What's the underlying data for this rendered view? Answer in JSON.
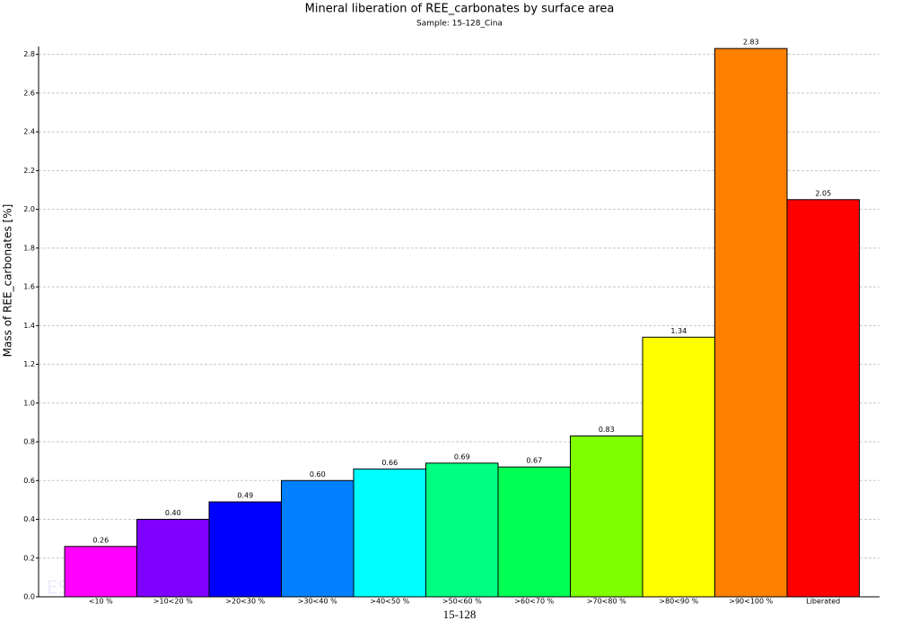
{
  "chart_data": {
    "type": "bar",
    "title": "Mineral liberation of REE_carbonates by surface area",
    "subtitle": "Sample: 15-128_Cina",
    "y_label": "Mass of REE_carbonates [%]",
    "x_label": "15-128",
    "watermark": "ESCAN",
    "categories": [
      "<10 %",
      ">10<20 %",
      ">20<30 %",
      ">30<40 %",
      ">40<50 %",
      ">50<60 %",
      ">60<70 %",
      ">70<80 %",
      ">80<90 %",
      ">90<100 %",
      "Liberated"
    ],
    "values": [
      0.26,
      0.4,
      0.49,
      0.6,
      0.66,
      0.69,
      0.67,
      0.83,
      1.34,
      2.83,
      2.05
    ],
    "value_labels": [
      "0.26",
      "0.40",
      "0.49",
      "0.60",
      "0.66",
      "0.69",
      "0.67",
      "0.83",
      "1.34",
      "2.83",
      "2.05"
    ],
    "colors": [
      "#ff00ff",
      "#8000ff",
      "#0000ff",
      "#0080ff",
      "#00ffff",
      "#00ff80",
      "#00ff55",
      "#80ff00",
      "#ffff00",
      "#ff8000",
      "#ff0000"
    ],
    "ylim": [
      0,
      2.84
    ],
    "yticks": [
      {
        "value": 0,
        "label": "0.0"
      },
      0.2,
      0.4,
      0.6,
      0.8,
      {
        "value": 1,
        "label": "1.0"
      },
      1.2,
      1.4,
      1.6,
      1.8,
      {
        "value": 2,
        "label": "2.0"
      },
      2.2,
      2.4,
      2.6,
      2.8
    ],
    "grid": true
  }
}
